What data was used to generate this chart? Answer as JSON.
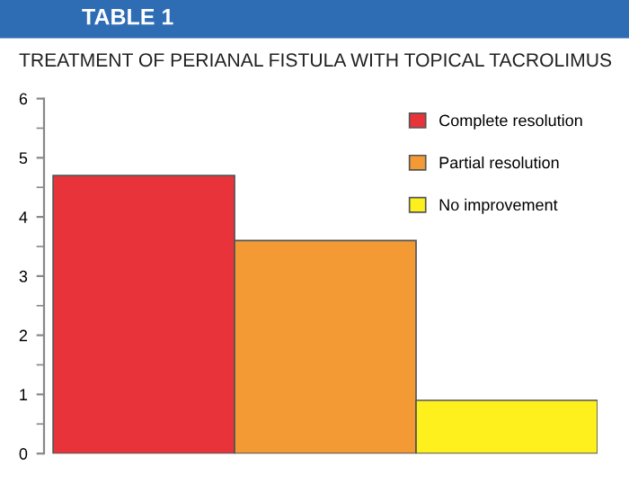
{
  "chart_data": {
    "type": "bar",
    "subtitle": "TABLE 1",
    "title": "TREATMENT OF PERIANAL FISTULA WITH TOPICAL TACROLIMUS",
    "categories": [
      null,
      null,
      null
    ],
    "series": [
      {
        "name": "Complete resolution",
        "color": "#e8333a",
        "values": [
          4.7,
          null,
          null
        ]
      },
      {
        "name": "Partial resolution",
        "color": "#f39a35",
        "values": [
          null,
          3.6,
          null
        ]
      },
      {
        "name": "No improvement",
        "color": "#fdf01c",
        "values": [
          null,
          null,
          0.9
        ]
      }
    ],
    "stacked": true,
    "ylim": [
      0,
      6
    ],
    "yticks": [
      0,
      1,
      2,
      3,
      4,
      5,
      6
    ],
    "grid": false,
    "legend": "top right"
  }
}
